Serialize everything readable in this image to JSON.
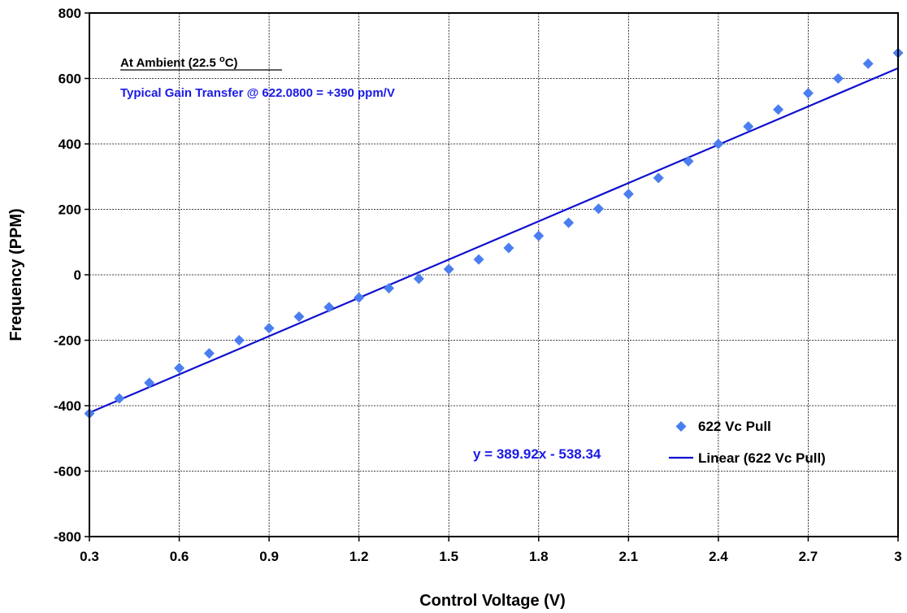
{
  "chart_data": {
    "type": "scatter",
    "xlabel": "Control Voltage (V)",
    "ylabel": "Frequency (PPM)",
    "xlim": [
      0.3,
      3
    ],
    "ylim": [
      -800,
      800
    ],
    "x_ticks": [
      "0.3",
      "0.6",
      "0.9",
      "1.2",
      "1.5",
      "1.8",
      "2.1",
      "2.4",
      "2.7",
      "3"
    ],
    "y_ticks": [
      "800",
      "600",
      "400",
      "200",
      "0",
      "-200",
      "-400",
      "-600",
      "-800"
    ],
    "grid": true,
    "legend_position": "bottom-right",
    "annotations": {
      "ambient_prefix": "At Ambient (22.5 ",
      "ambient_degree": "o",
      "ambient_suffix": "C)",
      "gain_transfer": "Typical Gain Transfer @ 622.0800 = +390 ppm/V",
      "equation": "y = 389.92x - 538.34"
    },
    "colors": {
      "series": "#4a7ef0",
      "trendline": "#1010d0",
      "annotation_text": "#1a1ae6"
    },
    "series": [
      {
        "name": "622 Vc Pull",
        "kind": "scatter",
        "marker": "diamond",
        "x": [
          0.3,
          0.4,
          0.5,
          0.6,
          0.7,
          0.8,
          0.9,
          1.0,
          1.1,
          1.2,
          1.3,
          1.4,
          1.5,
          1.6,
          1.7,
          1.8,
          1.9,
          2.0,
          2.1,
          2.2,
          2.3,
          2.4,
          2.5,
          2.6,
          2.7,
          2.8,
          2.9,
          3.0
        ],
        "y": [
          -424,
          -378,
          -330,
          -285,
          -240,
          -200,
          -163,
          -128,
          -99,
          -70,
          -41,
          -12,
          17,
          47,
          82,
          119,
          159,
          202,
          247,
          296,
          347,
          400,
          453,
          505,
          555,
          600,
          645,
          678
        ]
      },
      {
        "name": "Linear (622 Vc Pull)",
        "kind": "line",
        "slope": 389.92,
        "intercept": -538.34
      }
    ]
  }
}
